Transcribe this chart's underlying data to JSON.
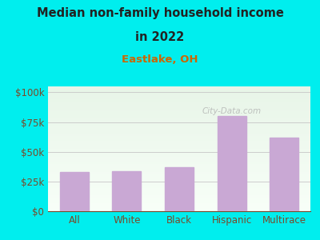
{
  "title_line1": "Median non-family household income",
  "title_line2": "in 2022",
  "subtitle": "Eastlake, OH",
  "categories": [
    "All",
    "White",
    "Black",
    "Hispanic",
    "Multirace"
  ],
  "values": [
    33000,
    33500,
    37000,
    80000,
    62000
  ],
  "bar_color": "#c9a8d4",
  "title_color": "#222222",
  "subtitle_color": "#cc6600",
  "bg_color": "#00eeee",
  "plot_bg_top": "#e8f5e8",
  "plot_bg_bottom": "#f8fff8",
  "ylabel_ticks": [
    "$0",
    "$25k",
    "$50k",
    "$75k",
    "$100k"
  ],
  "ytick_values": [
    0,
    25000,
    50000,
    75000,
    100000
  ],
  "ylim": [
    0,
    105000
  ],
  "watermark": "City-Data.com",
  "tick_color": "#7a4a2a",
  "grid_color": "#cccccc"
}
